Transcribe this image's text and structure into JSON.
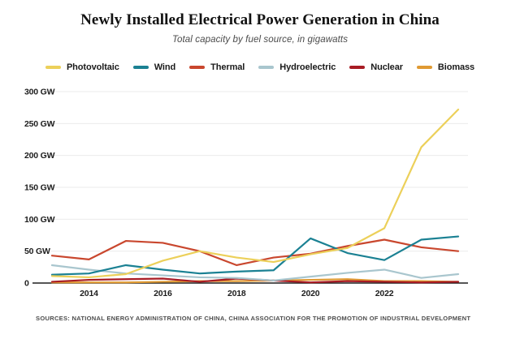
{
  "header": {
    "title": "Newly Installed Electrical Power Generation in China",
    "subtitle": "Total capacity by fuel source, in gigawatts"
  },
  "source_note": "SOURCES: NATIONAL ENERGY ADMINISTRATION OF CHINA, CHINA ASSOCIATION FOR THE PROMOTION OF INDUSTRIAL DEVELOPMENT",
  "chart_data": {
    "type": "line",
    "title": "Newly Installed Electrical Power Generation in China",
    "subtitle": "Total capacity by fuel source, in gigawatts",
    "xlabel": "",
    "ylabel": "GW",
    "x": [
      2013,
      2014,
      2015,
      2016,
      2017,
      2018,
      2019,
      2020,
      2021,
      2022,
      2023,
      2024
    ],
    "xlim": [
      2013,
      2024
    ],
    "ylim": [
      0,
      300
    ],
    "grid": "horizontal",
    "legend_position": "top",
    "x_ticks": [
      {
        "value": 2014,
        "label": "2014"
      },
      {
        "value": 2016,
        "label": "2016"
      },
      {
        "value": 2018,
        "label": "2018"
      },
      {
        "value": 2020,
        "label": "2020"
      },
      {
        "value": 2022,
        "label": "2022"
      }
    ],
    "y_ticks": [
      {
        "value": 0,
        "label": "0"
      },
      {
        "value": 50,
        "label": "50 GW"
      },
      {
        "value": 100,
        "label": "100 GW"
      },
      {
        "value": 150,
        "label": "150 GW"
      },
      {
        "value": 200,
        "label": "200 GW"
      },
      {
        "value": 250,
        "label": "250 GW"
      },
      {
        "value": 300,
        "label": "300 GW"
      }
    ],
    "series": [
      {
        "name": "Photovoltaic",
        "color": "#ecd05a",
        "values": [
          11,
          9,
          14,
          35,
          50,
          40,
          33,
          45,
          55,
          86,
          213,
          272
        ]
      },
      {
        "name": "Wind",
        "color": "#1b8193",
        "values": [
          13,
          15,
          28,
          21,
          15,
          18,
          20,
          70,
          47,
          36,
          68,
          73
        ]
      },
      {
        "name": "Thermal",
        "color": "#c9472e",
        "values": [
          43,
          37,
          66,
          63,
          50,
          28,
          40,
          46,
          58,
          68,
          56,
          50
        ]
      },
      {
        "name": "Hydroelectric",
        "color": "#a9c6ce",
        "values": [
          28,
          21,
          15,
          12,
          9,
          8,
          4,
          10,
          16,
          21,
          8,
          14
        ]
      },
      {
        "name": "Nuclear",
        "color": "#a81c24",
        "values": [
          2,
          5,
          6,
          7,
          2,
          7,
          4,
          1,
          3,
          2,
          1,
          2
        ]
      },
      {
        "name": "Biomass",
        "color": "#e09a33",
        "values": [
          1,
          1,
          1,
          2,
          3,
          3,
          4,
          5,
          6,
          3,
          3,
          2
        ]
      }
    ]
  }
}
